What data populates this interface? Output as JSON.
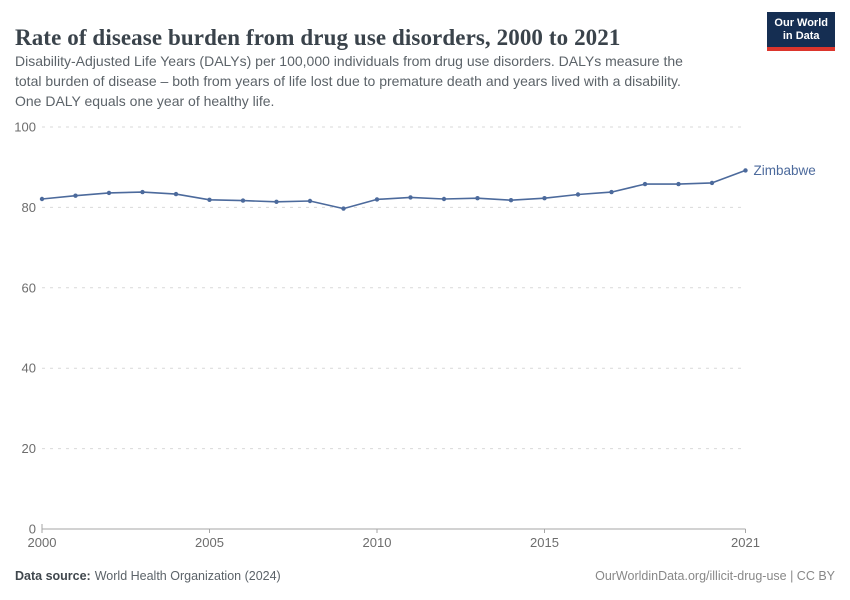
{
  "chart": {
    "title": "Rate of disease burden from drug use disorders, 2000 to 2021",
    "subtitle_lines": [
      "Disability-Adjusted Life Years (DALYs) per 100,000 individuals from drug use disorders. DALYs measure the",
      "total burden of disease – both from years of life lost due to premature death and years lived with a disability.",
      "One DALY equals one year of healthy life."
    ]
  },
  "logo": {
    "line1": "Our World",
    "line2": "in Data",
    "bg_color": "#152e52",
    "accent_color": "#dc352c"
  },
  "chart_data": {
    "type": "line",
    "title": "Rate of disease burden from drug use disorders, 2000 to 2021",
    "xlabel": "",
    "ylabel": "",
    "x": [
      2000,
      2001,
      2002,
      2003,
      2004,
      2005,
      2006,
      2007,
      2008,
      2009,
      2010,
      2011,
      2012,
      2013,
      2014,
      2015,
      2016,
      2017,
      2018,
      2019,
      2020,
      2021
    ],
    "series": [
      {
        "name": "Zimbabwe",
        "color": "#4c6a9c",
        "values": [
          82.1,
          82.9,
          83.6,
          83.8,
          83.3,
          81.9,
          81.7,
          81.4,
          81.6,
          79.7,
          82.0,
          82.5,
          82.1,
          82.3,
          81.8,
          82.3,
          83.2,
          83.8,
          85.8,
          85.8,
          86.1,
          89.2
        ]
      }
    ],
    "xlim": [
      2000,
      2021
    ],
    "ylim": [
      0,
      100
    ],
    "xticks": [
      "2000",
      "2005",
      "2010",
      "2015",
      "2021"
    ],
    "yticks": [
      0,
      20,
      40,
      60,
      80,
      100
    ],
    "grid": "horizontal-dashed",
    "legend": "end-of-line-label",
    "gridline_color": "#d9d9d9",
    "axis_color": "#a6a6a6",
    "tick_label_color": "#6d6d6d"
  },
  "footer": {
    "source_label": "Data source:",
    "source_value": "World Health Organization (2024)",
    "credit": "OurWorldinData.org/illicit-drug-use | CC BY"
  }
}
